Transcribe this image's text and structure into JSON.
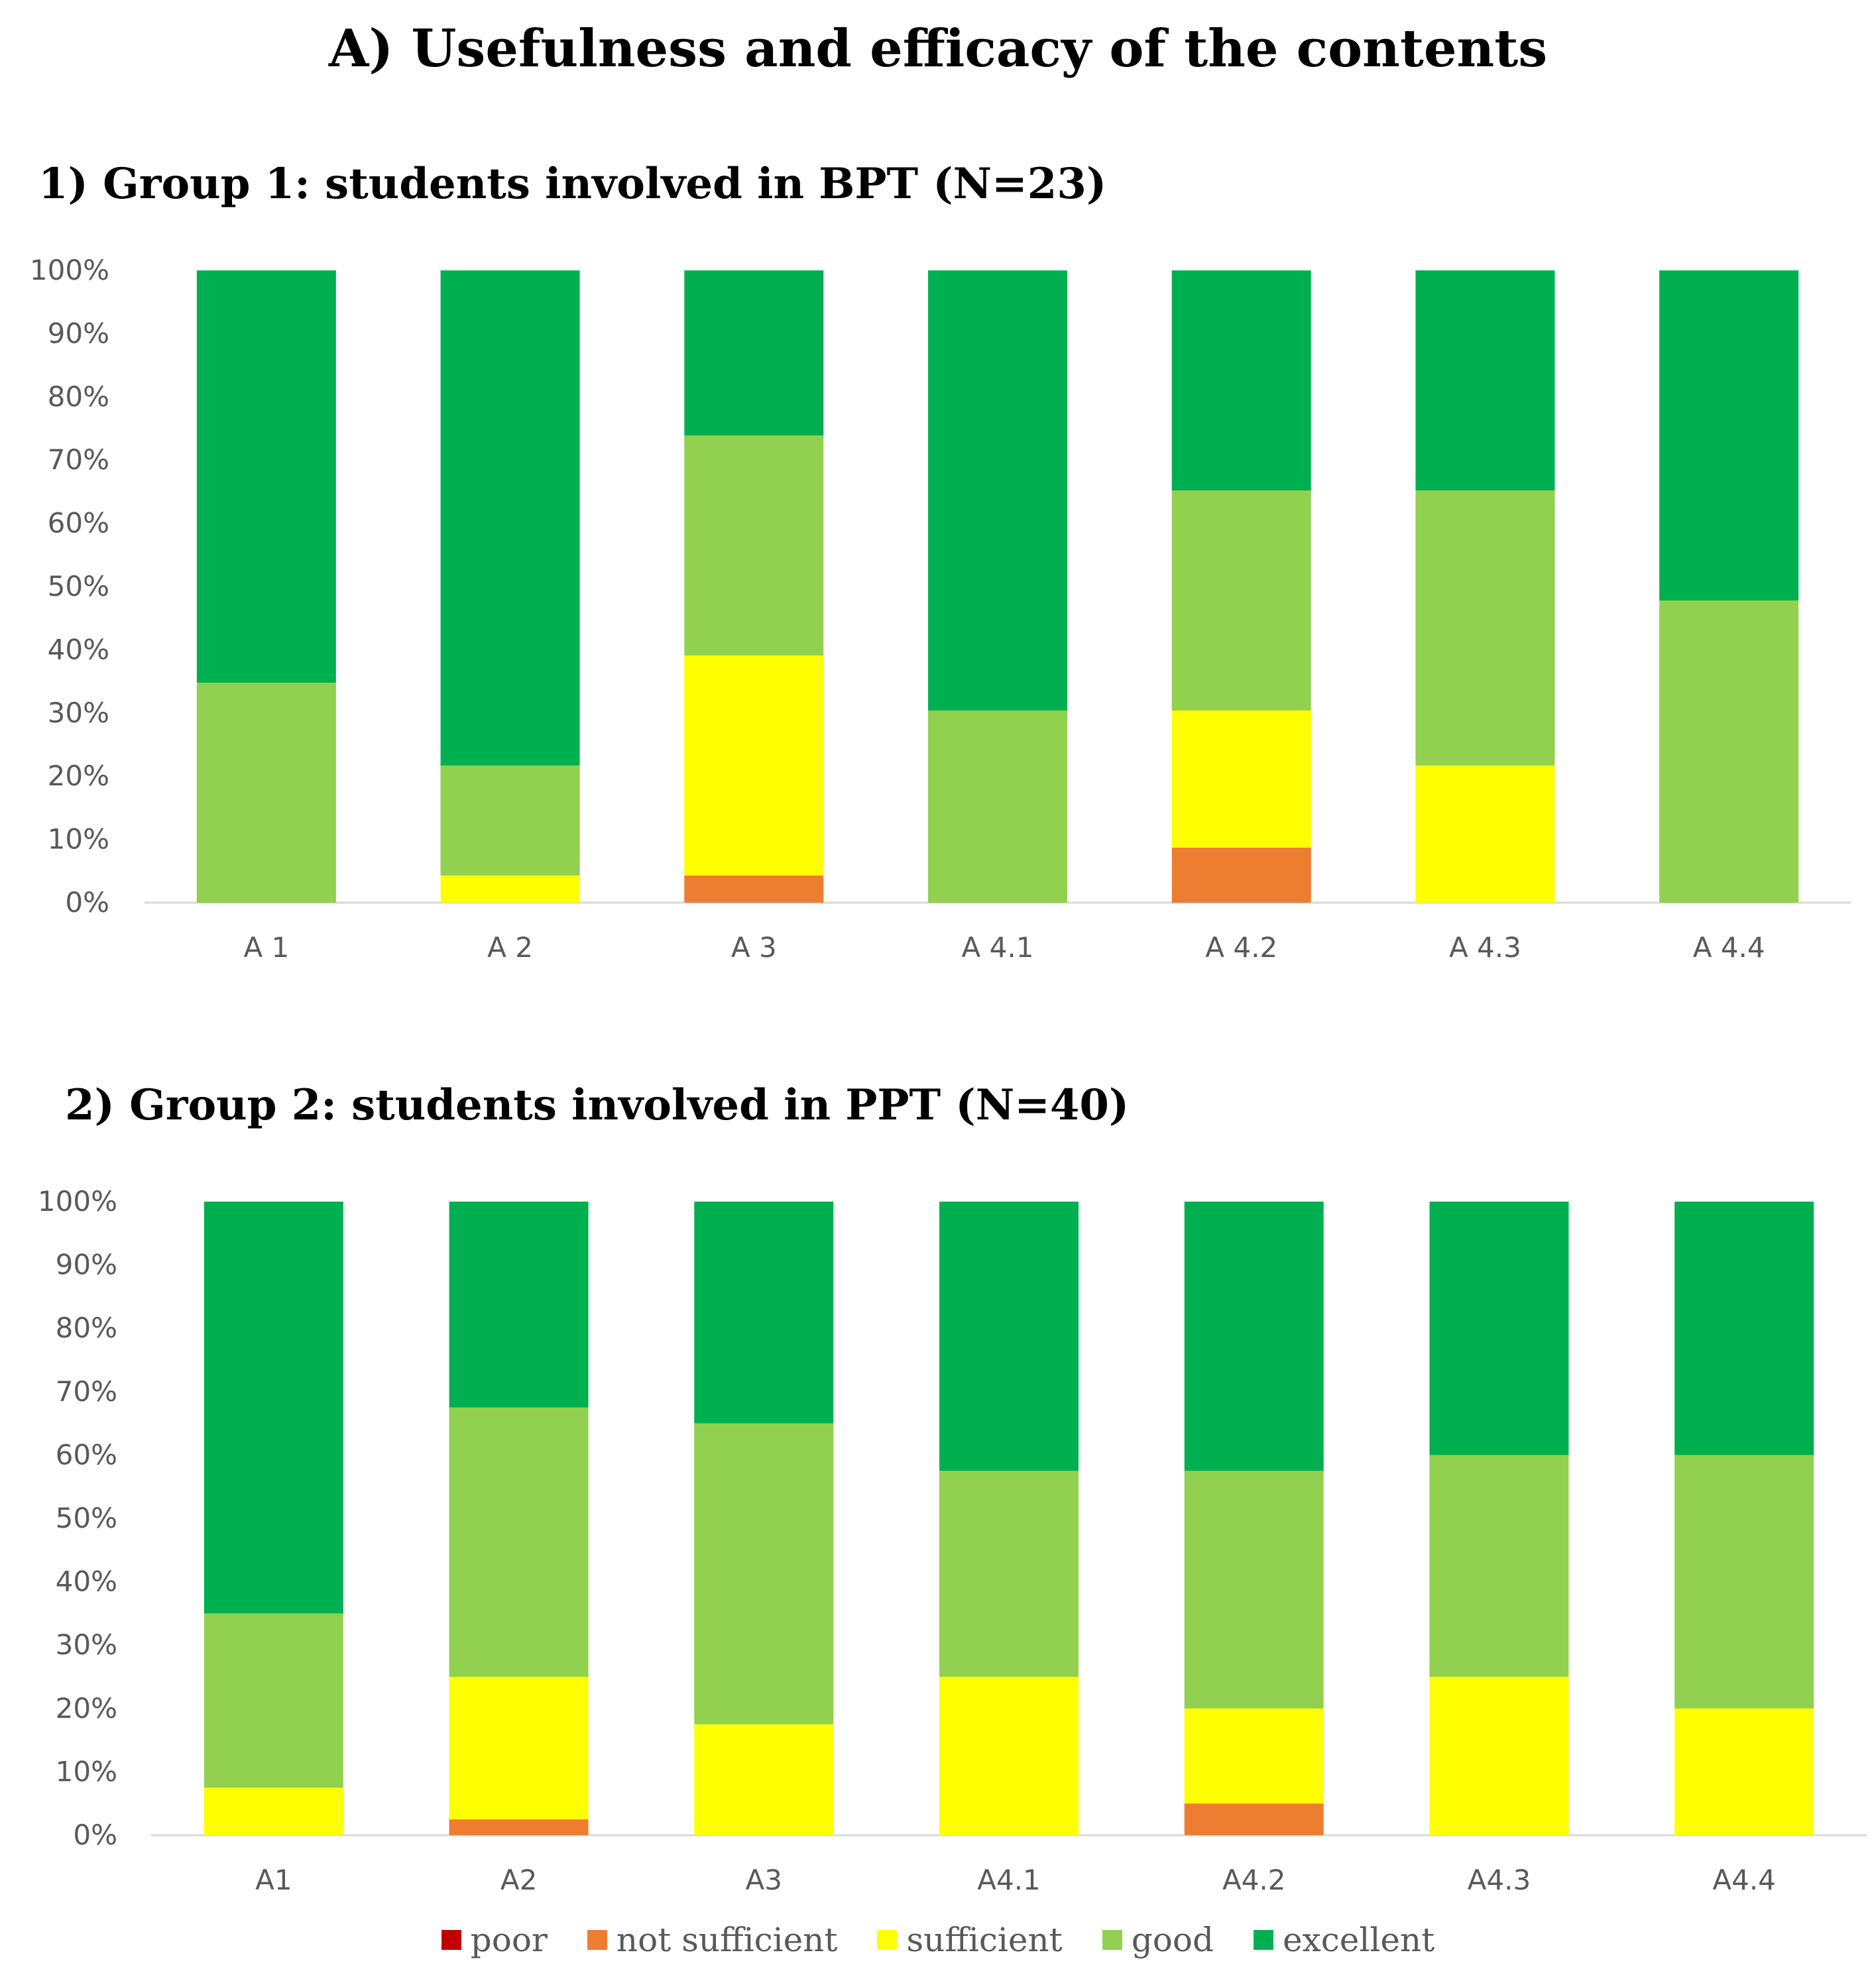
{
  "title": "A) Usefulness and efficacy of the contents",
  "legend": [
    {
      "name": "poor",
      "color": "#C00000"
    },
    {
      "name": "not sufficient",
      "color": "#ED7D31"
    },
    {
      "name": "sufficient",
      "color": "#FFFF00"
    },
    {
      "name": "good",
      "color": "#92D050"
    },
    {
      "name": "excellent",
      "color": "#00B050"
    }
  ],
  "chart_data": [
    {
      "type": "bar",
      "stacked": true,
      "title": "1) Group 1: students involved in BPT (N=23)",
      "categories": [
        "A 1",
        "A 2",
        "A 3",
        "A 4.1",
        "A 4.2",
        "A 4.3",
        "A 4.4"
      ],
      "ylim": [
        0,
        100
      ],
      "yticks": [
        "0%",
        "10%",
        "20%",
        "30%",
        "40%",
        "50%",
        "60%",
        "70%",
        "80%",
        "90%",
        "100%"
      ],
      "xlabel": "",
      "ylabel": "",
      "series": [
        {
          "name": "poor",
          "values": [
            0,
            0,
            0,
            0,
            0,
            0,
            0
          ]
        },
        {
          "name": "not sufficient",
          "values": [
            0,
            0,
            4.3,
            0,
            8.7,
            0,
            0
          ]
        },
        {
          "name": "sufficient",
          "values": [
            0,
            4.3,
            34.8,
            0,
            21.7,
            21.7,
            0
          ]
        },
        {
          "name": "good",
          "values": [
            34.8,
            17.4,
            34.8,
            30.4,
            34.8,
            43.5,
            47.8
          ]
        },
        {
          "name": "excellent",
          "values": [
            65.2,
            78.3,
            26.1,
            69.6,
            34.8,
            34.8,
            52.2
          ]
        }
      ]
    },
    {
      "type": "bar",
      "stacked": true,
      "title": "2) Group 2: students involved in PPT (N=40)",
      "categories": [
        "A1",
        "A2",
        "A3",
        "A4.1",
        "A4.2",
        "A4.3",
        "A4.4"
      ],
      "ylim": [
        0,
        100
      ],
      "yticks": [
        "0%",
        "10%",
        "20%",
        "30%",
        "40%",
        "50%",
        "60%",
        "70%",
        "80%",
        "90%",
        "100%"
      ],
      "xlabel": "",
      "ylabel": "",
      "series": [
        {
          "name": "poor",
          "values": [
            0,
            0,
            0,
            0,
            0,
            0,
            0
          ]
        },
        {
          "name": "not sufficient",
          "values": [
            0,
            2.5,
            0,
            0,
            5,
            0,
            0
          ]
        },
        {
          "name": "sufficient",
          "values": [
            7.5,
            22.5,
            17.5,
            25,
            15,
            25,
            20
          ]
        },
        {
          "name": "good",
          "values": [
            27.5,
            42.5,
            47.5,
            32.5,
            37.5,
            35,
            40
          ]
        },
        {
          "name": "excellent",
          "values": [
            65,
            32.5,
            35,
            42.5,
            42.5,
            40,
            40
          ]
        }
      ]
    }
  ]
}
